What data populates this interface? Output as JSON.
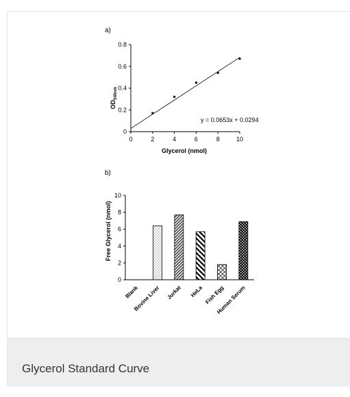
{
  "caption": "Glycerol Standard Curve",
  "chart_data": [
    {
      "type": "scatter",
      "panel_label": "a)",
      "title": "",
      "xlabel": "Glycerol (nmol)",
      "ylabel_main": "OD",
      "ylabel_sub": "540nm",
      "xlim": [
        0,
        10
      ],
      "ylim": [
        0,
        0.8
      ],
      "x_ticks": [
        0,
        2,
        4,
        6,
        8,
        10
      ],
      "y_ticks": [
        0,
        0.2,
        0.4,
        0.6,
        0.8
      ],
      "y_tick_labels": [
        "0",
        "0.2",
        "0.4",
        "0.6",
        "0.8"
      ],
      "x": [
        2,
        4,
        6,
        8,
        10
      ],
      "y": [
        0.17,
        0.32,
        0.45,
        0.54,
        0.67
      ],
      "trendline": {
        "slope": 0.0653,
        "intercept": 0.0294
      },
      "equation": "y = 0.0653x + 0.0294",
      "grid": false
    },
    {
      "type": "bar",
      "panel_label": "b)",
      "title": "",
      "xlabel": "",
      "ylabel": "Free Glycerol (nmol)",
      "ylim": [
        0,
        10
      ],
      "y_ticks": [
        0,
        2,
        4,
        6,
        8,
        10
      ],
      "categories": [
        "Blank",
        "Bovine Liver",
        "Jurkat",
        "HeLa",
        "Fish Egg",
        "Human Serum"
      ],
      "values": [
        0,
        6.4,
        7.7,
        5.7,
        1.8,
        6.9
      ],
      "patterns": [
        "none",
        "dots",
        "diagonal-dense",
        "diagonal-wide",
        "crosshatch",
        "checker"
      ],
      "grid": false
    }
  ]
}
